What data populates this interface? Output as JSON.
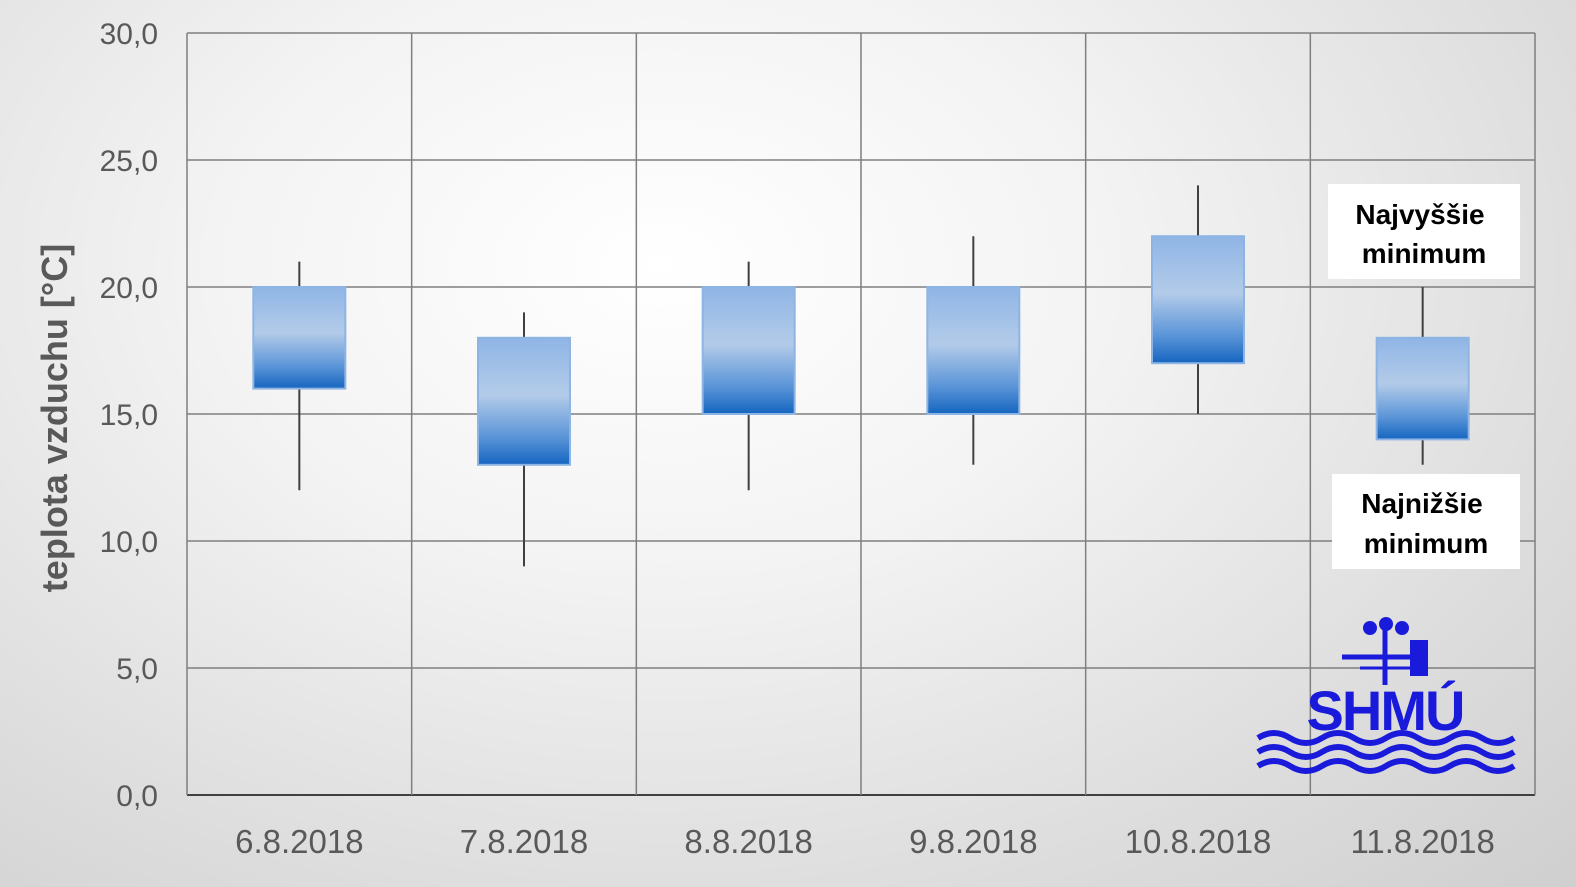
{
  "chart_data": {
    "type": "candlestick",
    "ylabel": "teplota vzduchu [°C]",
    "ylim": [
      0,
      30
    ],
    "ytick_step": 5,
    "ytick_labels": [
      "0,0",
      "5,0",
      "10,0",
      "15,0",
      "20,0",
      "25,0",
      "30,0"
    ],
    "grid": true,
    "categories": [
      "6.8.2018",
      "7.8.2018",
      "8.8.2018",
      "9.8.2018",
      "10.8.2018",
      "11.8.2018"
    ],
    "series": [
      {
        "low": [
          12,
          9,
          12,
          13,
          15,
          13
        ],
        "box_bottom": [
          16,
          13,
          15,
          15,
          17,
          14
        ],
        "box_top": [
          20,
          18,
          20,
          20,
          22,
          18
        ],
        "high": [
          21,
          19,
          21,
          22,
          24,
          20
        ]
      }
    ],
    "annotations": {
      "upper": {
        "line1": "Najvyššie",
        "line2": "minimum"
      },
      "lower": {
        "line1": "Najnižšie",
        "line2": "minimum"
      }
    },
    "colors": {
      "box_light": "#a9c5e7",
      "box_dark": "#1f6fc6",
      "box_border": "#8eb4e3",
      "whisker": "#404040",
      "grid": "#7f7f7f",
      "logo": "#1a1adb"
    }
  },
  "logo": {
    "text": "SHMÚ"
  }
}
